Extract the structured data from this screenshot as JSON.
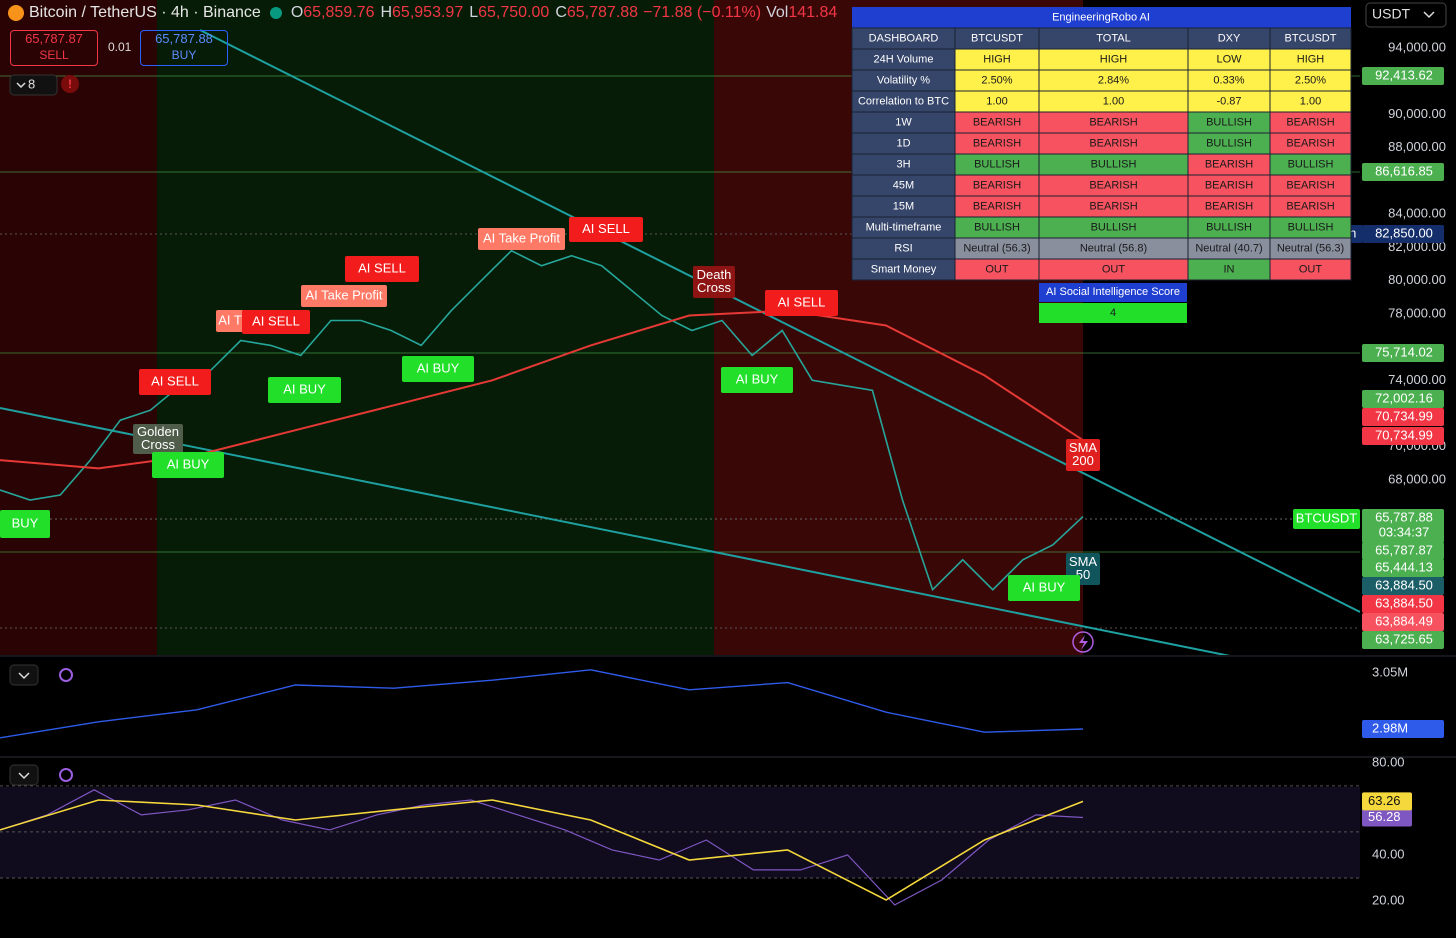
{
  "header": {
    "symbol": "Bitcoin / TetherUS · 4h · Binance",
    "ohlc": [
      {
        "key": "O",
        "value": "65,859.76"
      },
      {
        "key": "H",
        "value": "65,953.97"
      },
      {
        "key": "L",
        "value": "65,750.00"
      },
      {
        "key": "C",
        "value": "65,787.88"
      }
    ],
    "change": "−71.88 (−0.11%)",
    "vol_key": "Vol",
    "vol": "141.84",
    "currency": "USDT"
  },
  "trade": {
    "sell_price": "65,787.87",
    "sell": "SELL",
    "spread": "0.01",
    "buy_price": "65,787.88",
    "buy": "BUY"
  },
  "indicator_count": "8",
  "price": {
    "ylim": [
      57470,
      96890
    ],
    "yticks": [
      {
        "value": 94000,
        "label": "94,000.00"
      },
      {
        "value": 90000,
        "label": "90,000.00"
      },
      {
        "value": 88000,
        "label": "88,000.00"
      },
      {
        "value": 84000,
        "label": "84,000.00"
      },
      {
        "value": 82000,
        "label": "82,000.00"
      },
      {
        "value": 80000,
        "label": "80,000.00"
      },
      {
        "value": 78000,
        "label": "78,000.00"
      },
      {
        "value": 74000,
        "label": "74,000.00"
      },
      {
        "value": 70000,
        "label": "70,000.00"
      },
      {
        "value": 68000,
        "label": "68,000.00"
      }
    ],
    "series": [
      {
        "color": "#26a69a",
        "values": [
          67400,
          66800,
          67100,
          69200,
          71600,
          72200,
          73700,
          74600,
          76400,
          76100,
          75500,
          77600,
          77600,
          77000,
          76100,
          78200,
          80000,
          81800,
          80900,
          81500,
          80900,
          79400,
          77900,
          77000,
          77600,
          75500,
          77000,
          74000,
          73700,
          73400,
          66800,
          61400,
          63200,
          61400,
          63200,
          64100,
          65800
        ]
      },
      {
        "color": "#e53935",
        "values": [
          69200,
          68700,
          69500,
          71000,
          72500,
          74000,
          76100,
          77900,
          78200,
          77300,
          74300,
          70400
        ]
      }
    ],
    "tags": [
      {
        "label": "92,413.62",
        "color": "#4caf50"
      },
      {
        "label": "86,616.85",
        "color": "#4caf50"
      },
      {
        "side": "High",
        "label": "82,850.00",
        "color": "#132e6b"
      },
      {
        "label": "75,714.02",
        "color": "#4caf50"
      },
      {
        "label": "72,002.16",
        "color": "#4caf50"
      },
      {
        "label": "70,734.99",
        "color": "#f23645"
      },
      {
        "label": "70,734.99",
        "color": "#f23645"
      },
      {
        "label": "65,787.88",
        "sub": "03:34:37",
        "color": "#4caf50"
      },
      {
        "label": "65,787.87",
        "color": "#4caf50"
      },
      {
        "label": "65,444.13",
        "color": "#4caf50"
      },
      {
        "label": "63,884.50",
        "color": "#1b5e67"
      },
      {
        "label": "63,884.50",
        "color": "#f23645"
      },
      {
        "label": "63,884.49",
        "color": "#f7525f"
      },
      {
        "label": "63,725.65",
        "color": "#4caf50"
      }
    ],
    "signals": [
      {
        "lines": [
          "BUY"
        ],
        "color": "#22e02a"
      },
      {
        "lines": [
          "AI SELL"
        ],
        "color": "#f21c1c"
      },
      {
        "lines": [
          "Golden",
          "Cross"
        ],
        "color": "#4f5d4a"
      },
      {
        "lines": [
          "AI BUY"
        ],
        "color": "#22e02a"
      },
      {
        "lines": [
          "AI T"
        ],
        "color": "#ff7a66"
      },
      {
        "lines": [
          "AI SELL"
        ],
        "color": "#f21c1c"
      },
      {
        "lines": [
          "AI BUY"
        ],
        "color": "#22e02a"
      },
      {
        "lines": [
          "AI Take Profit"
        ],
        "color": "#ff7a66"
      },
      {
        "lines": [
          "AI SELL"
        ],
        "color": "#f21c1c"
      },
      {
        "lines": [
          "AI BUY"
        ],
        "color": "#22e02a"
      },
      {
        "lines": [
          "AI Take Profit"
        ],
        "color": "#ff7a66"
      },
      {
        "lines": [
          "AI SELL"
        ],
        "color": "#f21c1c"
      },
      {
        "lines": [
          "Death",
          "Cross"
        ],
        "color": "#8e1414"
      },
      {
        "lines": [
          "AI SELL"
        ],
        "color": "#f21c1c"
      },
      {
        "lines": [
          "AI BUY"
        ],
        "color": "#22e02a"
      },
      {
        "lines": [
          "SMA",
          "200"
        ],
        "color": "#e01f1f"
      },
      {
        "lines": [
          "SMA",
          "50"
        ],
        "color": "#10545c"
      },
      {
        "lines": [
          "AI BUY"
        ],
        "color": "#22e02a"
      },
      {
        "lines": [
          "BTCUSDT"
        ],
        "color": "#22e02a"
      }
    ]
  },
  "dashboard": {
    "title": "EngineeringRobo AI",
    "columns": [
      "DASHBOARD",
      "BTCUSDT",
      "TOTAL",
      "DXY",
      "BTCUSDT"
    ],
    "rows": [
      {
        "label": "24H Volume",
        "values": [
          "HIGH",
          "HIGH",
          "LOW",
          "HIGH"
        ],
        "colors": [
          "yellow",
          "yellow",
          "yellow",
          "yellow"
        ]
      },
      {
        "label": "Volatility %",
        "values": [
          "2.50%",
          "2.84%",
          "0.33%",
          "2.50%"
        ],
        "colors": [
          "yellow",
          "yellow",
          "yellow",
          "yellow"
        ]
      },
      {
        "label": "Correlation to BTC",
        "values": [
          "1.00",
          "1.00",
          "-0.87",
          "1.00"
        ],
        "colors": [
          "yellow",
          "yellow",
          "yellow",
          "yellow"
        ]
      },
      {
        "label": "1W",
        "values": [
          "BEARISH",
          "BEARISH",
          "BULLISH",
          "BEARISH"
        ],
        "colors": [
          "red",
          "red",
          "green",
          "red"
        ]
      },
      {
        "label": "1D",
        "values": [
          "BEARISH",
          "BEARISH",
          "BULLISH",
          "BEARISH"
        ],
        "colors": [
          "red",
          "red",
          "green",
          "red"
        ]
      },
      {
        "label": "3H",
        "values": [
          "BULLISH",
          "BULLISH",
          "BEARISH",
          "BULLISH"
        ],
        "colors": [
          "green",
          "green",
          "red",
          "green"
        ]
      },
      {
        "label": "45M",
        "values": [
          "BEARISH",
          "BEARISH",
          "BEARISH",
          "BEARISH"
        ],
        "colors": [
          "red",
          "red",
          "red",
          "red"
        ]
      },
      {
        "label": "15M",
        "values": [
          "BEARISH",
          "BEARISH",
          "BEARISH",
          "BEARISH"
        ],
        "colors": [
          "red",
          "red",
          "red",
          "red"
        ]
      },
      {
        "label": "Multi-timeframe",
        "values": [
          "BULLISH",
          "BULLISH",
          "BULLISH",
          "BULLISH"
        ],
        "colors": [
          "green",
          "green",
          "green",
          "green"
        ]
      },
      {
        "label": "RSI",
        "values": [
          "Neutral (56.3)",
          "Neutral (56.8)",
          "Neutral (40.7)",
          "Neutral (56.3)"
        ],
        "colors": [
          "gray",
          "gray",
          "gray",
          "gray"
        ]
      },
      {
        "label": "Smart Money",
        "values": [
          "OUT",
          "OUT",
          "IN",
          "OUT"
        ],
        "colors": [
          "red",
          "red",
          "green",
          "red"
        ]
      }
    ],
    "score_title": "AI Social Intelligence Score",
    "score": "4"
  },
  "volume": {
    "ylim": [
      2.945,
      3.07
    ],
    "yticks": [
      {
        "value": 3.05,
        "label": "3.05M"
      }
    ],
    "series": [
      {
        "color": "#2f5bea",
        "values": [
          2.969,
          2.989,
          3.004,
          3.035,
          3.031,
          3.041,
          3.054,
          3.029,
          3.038,
          3.001,
          2.976,
          2.98
        ],
        "value_labels": [
          null,
          null,
          null,
          null,
          null,
          null,
          null,
          null,
          null,
          null,
          null,
          "2.98M"
        ]
      }
    ]
  },
  "rsi": {
    "ylim": [
      3.9,
      81.7
    ],
    "yticks": [
      {
        "value": 80,
        "label": "80.00"
      },
      {
        "value": 40,
        "label": "40.00"
      },
      {
        "value": 20,
        "label": "20.00"
      }
    ],
    "levels": [
      70,
      50,
      30
    ],
    "series": [
      {
        "color": "#7e57c2",
        "values": [
          50.9,
          57.4,
          68.3,
          57.4,
          59.6,
          63.9,
          55.2,
          50.9,
          57.4,
          61.7,
          63.9,
          57.4,
          50.9,
          42.2,
          37.8,
          46.5,
          33.5,
          33.5,
          40,
          18.3,
          29.1,
          46.5,
          57.4,
          56.28
        ]
      },
      {
        "color": "#f5d93c",
        "values": [
          50.9,
          63.9,
          61.7,
          55.2,
          59.6,
          63.9,
          55.2,
          37.8,
          42.2,
          20.4,
          46.5,
          63.26
        ]
      }
    ]
  }
}
